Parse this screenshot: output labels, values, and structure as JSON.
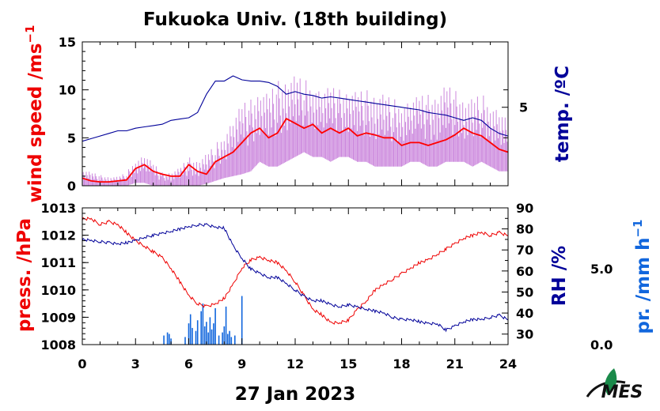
{
  "title": "Fukuoka Univ. (18th building)",
  "date_label": "27 Jan 2023",
  "colors": {
    "wind_label": "#ee0000",
    "wind_mean": "#ff0000",
    "wind_raw": "#cc88dd",
    "temp": "#000099",
    "pressure": "#ee0000",
    "rh": "#000099",
    "precip": "#1166dd"
  },
  "logo": {
    "icon": "leaf-logo-icon",
    "text": "MES"
  },
  "chart_data": [
    {
      "id": "top",
      "type": "line",
      "x_ticks": [
        "0",
        "3",
        "6",
        "9",
        "12",
        "15",
        "18",
        "21",
        "24"
      ],
      "xlim": [
        0,
        24
      ],
      "y_left": {
        "label": "wind speed /ms",
        "superscript": "−1",
        "lim": [
          0,
          15
        ],
        "ticks": [
          "0",
          "5",
          "10",
          "15"
        ]
      },
      "y_right": {
        "label": "temp. /ºC",
        "ticks": [
          "5"
        ]
      },
      "series": [
        {
          "key": "wind_raw",
          "style": "spiky",
          "x": [
            0,
            0.5,
            1,
            1.5,
            2,
            2.5,
            3,
            3.5,
            4,
            4.5,
            5,
            5.5,
            6,
            6.5,
            7,
            7.5,
            8,
            8.5,
            9,
            9.5,
            10,
            10.5,
            11,
            11.5,
            12,
            12.5,
            13,
            13.5,
            14,
            14.5,
            15,
            15.5,
            16,
            16.5,
            17,
            17.5,
            18,
            18.5,
            19,
            19.5,
            20,
            20.5,
            21,
            21.5,
            22,
            22.5,
            23,
            23.5,
            24
          ],
          "lo": [
            0,
            0,
            0,
            0,
            0,
            0,
            0.3,
            0.3,
            0,
            0,
            0,
            0,
            0,
            0,
            0.2,
            0.5,
            0.8,
            1,
            1.2,
            1.5,
            2.5,
            2,
            2,
            2.5,
            3,
            3.5,
            3,
            3,
            2.5,
            3,
            3,
            2.5,
            2.5,
            2,
            2,
            2,
            2,
            2.5,
            2.5,
            2,
            2,
            2.5,
            2.5,
            2.5,
            2,
            2.5,
            2,
            1.5,
            1.5
          ],
          "hi": [
            1.8,
            1.5,
            1.2,
            1,
            1,
            1.5,
            3,
            3.5,
            2.5,
            1.5,
            1.5,
            2,
            3.2,
            2.8,
            3.5,
            4.5,
            6,
            7.5,
            9,
            9.5,
            10.5,
            10,
            11.5,
            11.8,
            12,
            11.5,
            11.6,
            10.5,
            10.8,
            10.5,
            10.5,
            10.2,
            10.5,
            10.2,
            10,
            9.5,
            9.5,
            9.5,
            9.8,
            10,
            10,
            11,
            10.5,
            9.5,
            9.5,
            10,
            9.5,
            8.5,
            7
          ]
        },
        {
          "key": "wind_mean",
          "x": [
            0,
            0.5,
            1,
            1.5,
            2,
            2.5,
            3,
            3.5,
            4,
            4.5,
            5,
            5.5,
            6,
            6.5,
            7,
            7.5,
            8,
            8.5,
            9,
            9.5,
            10,
            10.5,
            11,
            11.5,
            12,
            12.5,
            13,
            13.5,
            14,
            14.5,
            15,
            15.5,
            16,
            16.5,
            17,
            17.5,
            18,
            18.5,
            19,
            19.5,
            20,
            20.5,
            21,
            21.5,
            22,
            22.5,
            23,
            23.5,
            24
          ],
          "y": [
            0.8,
            0.5,
            0.4,
            0.4,
            0.5,
            0.6,
            1.8,
            2.2,
            1.5,
            1.2,
            1,
            1,
            2.2,
            1.5,
            1.2,
            2.5,
            3,
            3.5,
            4.5,
            5.5,
            6,
            5,
            5.5,
            7,
            6.5,
            6,
            6.4,
            5.5,
            6,
            5.5,
            6,
            5.2,
            5.5,
            5.3,
            5,
            5,
            4.2,
            4.5,
            4.5,
            4.2,
            4.5,
            4.8,
            5.3,
            6,
            5.5,
            5.2,
            4.5,
            3.8,
            3.5
          ]
        },
        {
          "key": "temp",
          "axis": "right",
          "x": [
            0,
            0.5,
            1,
            1.5,
            2,
            2.5,
            3,
            3.5,
            4,
            4.5,
            5,
            5.5,
            6,
            6.5,
            7,
            7.5,
            8,
            8.5,
            9,
            9.5,
            10,
            10.5,
            11,
            11.5,
            12,
            12.5,
            13,
            13.5,
            14,
            14.5,
            15,
            15.5,
            16,
            16.5,
            17,
            17.5,
            18,
            18.5,
            19,
            19.5,
            20,
            20.5,
            21,
            21.5,
            22,
            22.5,
            23,
            23.5,
            24
          ],
          "y": [
            3.7,
            3.8,
            3.9,
            4.0,
            4.1,
            4.1,
            4.2,
            4.25,
            4.3,
            4.35,
            4.5,
            4.55,
            4.6,
            4.8,
            5.5,
            6,
            6,
            6.2,
            6.05,
            6,
            6,
            5.95,
            5.8,
            5.5,
            5.6,
            5.5,
            5.45,
            5.35,
            5.4,
            5.35,
            5.3,
            5.25,
            5.2,
            5.15,
            5.1,
            5.05,
            5,
            4.95,
            4.9,
            4.8,
            4.75,
            4.7,
            4.6,
            4.5,
            4.6,
            4.5,
            4.2,
            4.0,
            3.9
          ]
        }
      ]
    },
    {
      "id": "bottom",
      "type": "line",
      "x_ticks": [
        "0",
        "3",
        "6",
        "9",
        "12",
        "15",
        "18",
        "21",
        "24"
      ],
      "xlim": [
        0,
        24
      ],
      "y_left": {
        "label": "press. /hPa",
        "lim": [
          1008,
          1013
        ],
        "ticks": [
          "1008",
          "1009",
          "1010",
          "1011",
          "1012",
          "1013"
        ]
      },
      "y_right": {
        "label": "RH /%",
        "lim": [
          25,
          90
        ],
        "ticks": [
          "30",
          "40",
          "50",
          "60",
          "70",
          "80",
          "90"
        ]
      },
      "y_extra": {
        "label": "pr. /mm h",
        "superscript": "−1",
        "lim": [
          0,
          9
        ],
        "ticks": [
          "0.0",
          "5.0"
        ]
      },
      "series": [
        {
          "key": "pressure",
          "x": [
            0,
            0.5,
            1,
            1.5,
            2,
            2.5,
            3,
            3.5,
            4,
            4.5,
            5,
            5.5,
            6,
            6.5,
            7,
            7.5,
            8,
            8.5,
            9,
            9.5,
            10,
            10.5,
            11,
            11.5,
            12,
            12.5,
            13,
            13.5,
            14,
            14.5,
            15,
            15.5,
            16,
            16.5,
            17,
            17.5,
            18,
            18.5,
            19,
            19.5,
            20,
            20.5,
            21,
            21.5,
            22,
            22.5,
            23,
            23.5,
            24
          ],
          "y": [
            1012.6,
            1012.6,
            1012.4,
            1012.5,
            1012.4,
            1012.1,
            1011.8,
            1011.6,
            1011.4,
            1011.2,
            1010.8,
            1010.3,
            1009.8,
            1009.5,
            1009.4,
            1009.5,
            1009.7,
            1010.2,
            1010.8,
            1011.1,
            1011.2,
            1011.1,
            1011,
            1010.7,
            1010.3,
            1009.8,
            1009.3,
            1009.1,
            1008.8,
            1008.8,
            1008.9,
            1009.3,
            1009.6,
            1010,
            1010.2,
            1010.4,
            1010.6,
            1010.8,
            1011,
            1011.1,
            1011.3,
            1011.5,
            1011.7,
            1011.9,
            1012,
            1012.1,
            1012,
            1012.1,
            1012
          ]
        },
        {
          "key": "rh",
          "axis": "right",
          "x": [
            0,
            0.5,
            1,
            1.5,
            2,
            2.5,
            3,
            3.5,
            4,
            4.5,
            5,
            5.5,
            6,
            6.5,
            7,
            7.5,
            8,
            8.5,
            9,
            9.5,
            10,
            10.5,
            11,
            11.5,
            12,
            12.5,
            13,
            13.5,
            14,
            14.5,
            15,
            15.5,
            16,
            16.5,
            17,
            17.5,
            18,
            18.5,
            19,
            19.5,
            20,
            20.5,
            21,
            21.5,
            22,
            22.5,
            23,
            23.5,
            24
          ],
          "y": [
            75,
            74.5,
            74,
            73.5,
            73,
            73.5,
            74.5,
            76,
            77,
            78,
            79,
            80,
            81,
            82,
            82,
            81,
            80.5,
            72,
            66,
            61,
            59,
            57,
            57,
            54,
            51,
            48,
            46,
            46,
            44,
            43,
            44,
            43,
            42,
            41,
            40,
            38,
            37,
            37,
            36,
            35,
            35,
            32,
            34,
            36,
            37,
            37,
            38,
            39,
            37
          ]
        },
        {
          "key": "precip",
          "type": "bar",
          "axis": "extra",
          "x": [
            4.6,
            4.8,
            4.9,
            5.0,
            5.8,
            6.0,
            6.1,
            6.2,
            6.4,
            6.5,
            6.7,
            6.8,
            6.9,
            7.0,
            7.1,
            7.2,
            7.3,
            7.4,
            7.5,
            7.7,
            7.9,
            8.0,
            8.1,
            8.2,
            8.3,
            8.4,
            8.6,
            9.0
          ],
          "values": [
            0.6,
            0.8,
            0.7,
            0.4,
            0.5,
            1.4,
            2.0,
            1.1,
            0.9,
            1.6,
            2.2,
            2.7,
            1.2,
            1.5,
            0.8,
            1.8,
            1.0,
            1.4,
            2.4,
            0.6,
            0.8,
            1.2,
            2.5,
            0.7,
            0.9,
            0.5,
            0.6,
            3.2
          ]
        }
      ]
    }
  ]
}
